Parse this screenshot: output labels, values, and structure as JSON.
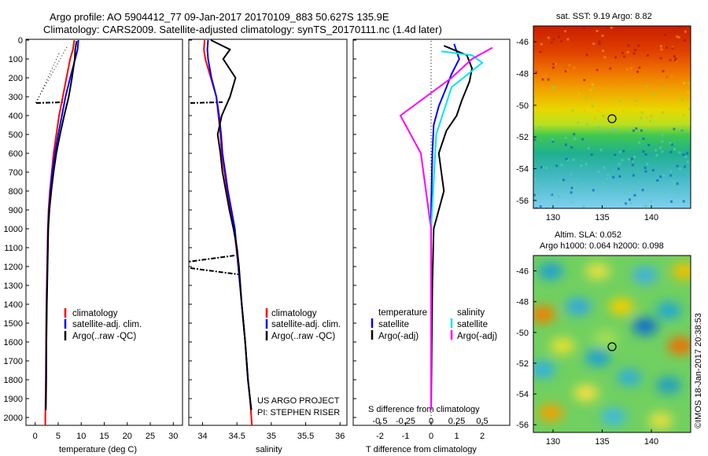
{
  "header": {
    "line1": "Argo profile: AO 5904412_77 09-Jan-2017 20170109_883 50.627S 135.9E",
    "line2": "Climatology: CARS2009. Satellite-adjusted climatology: synTS_20170111.nc (1.4d later)"
  },
  "colors": {
    "climatology": "#ff0000",
    "satellite": "#0000ff",
    "argo": "#000000",
    "salinity_satellite": "#00e5ee",
    "salinity_argo": "#ff00ff"
  },
  "depth_ticks": [
    "0",
    "100",
    "200",
    "300",
    "400",
    "500",
    "600",
    "700",
    "800",
    "900",
    "1000",
    "1100",
    "1200",
    "1300",
    "1400",
    "1500",
    "1600",
    "1700",
    "1800",
    "1900",
    "2000"
  ],
  "panel_temp": {
    "xlabel": "temperature (deg C)",
    "xticks": [
      "0",
      "5",
      "10",
      "15",
      "20",
      "25",
      "30"
    ],
    "legend": [
      "climatology",
      "satellite-adj. clim.",
      "Argo(..raw -QC)"
    ]
  },
  "panel_sal": {
    "xlabel": "salinity",
    "xticks": [
      "34",
      "34.5",
      "35",
      "35.5",
      "36"
    ],
    "legend": [
      "climatology",
      "satellite-adj. clim.",
      "Argo(..raw -QC)"
    ],
    "credit1": "US ARGO PROJECT",
    "credit2": "PI: STEPHEN RISER"
  },
  "panel_diff": {
    "xlabel": "T difference from climatology",
    "top_label": "S difference from climatology",
    "s_ticks": [
      "-0.5",
      "-0.25",
      "0",
      "0.25",
      "0.5"
    ],
    "t_ticks": [
      "-2",
      "-1",
      "0",
      "1",
      "2"
    ],
    "legend_t_title": "temperature",
    "legend_t_items": [
      "satellite",
      "Argo(-adj)"
    ],
    "legend_s_title": "salinity",
    "legend_s_items": [
      "satellite",
      "Argo(-adj)"
    ]
  },
  "map_sst": {
    "title": "sat. SST: 9.19 Argo: 8.82",
    "yticks": [
      "-46",
      "-48",
      "-50",
      "-52",
      "-54",
      "-56"
    ],
    "xticks": [
      "130",
      "135",
      "140"
    ]
  },
  "map_sla": {
    "title1": "Altim. SLA: 0.052",
    "title2": "Argo h1000: 0.064 h2000: 0.098",
    "yticks": [
      "-46",
      "-48",
      "-50",
      "-52",
      "-54",
      "-56"
    ],
    "xticks": [
      "130",
      "135",
      "140"
    ]
  },
  "stamp": "©IMOS 18-Jan-2017 20:38:53",
  "chart_data": [
    {
      "type": "line",
      "xlabel": "temperature (deg C)",
      "ylabel": "",
      "xlim": [
        -2,
        32
      ],
      "ylim": [
        2060,
        0
      ],
      "series": [
        {
          "name": "climatology",
          "x": [
            8.5,
            8.2,
            7.6,
            6.8,
            6.0,
            5.2,
            4.6,
            4.0,
            3.6,
            3.2,
            2.9,
            2.75,
            2.6,
            2.45,
            2.35,
            2.3,
            2.25,
            2.2,
            2.2
          ],
          "y": [
            0,
            50,
            100,
            200,
            300,
            400,
            500,
            600,
            700,
            800,
            900,
            1000,
            1200,
            1400,
            1600,
            1800,
            1900,
            2000,
            2050
          ]
        },
        {
          "name": "satellite-adj. clim.",
          "x": [
            9.4,
            9.2,
            8.7,
            7.6,
            6.6,
            5.8,
            5.0,
            4.3,
            3.7,
            3.3,
            3.0,
            2.8,
            2.65,
            2.5,
            2.4,
            2.35,
            2.3,
            2.3
          ],
          "y": [
            0,
            50,
            100,
            200,
            300,
            400,
            500,
            600,
            700,
            800,
            900,
            1000,
            1200,
            1400,
            1600,
            1800,
            1900,
            1960
          ]
        },
        {
          "name": "Argo(..raw -QC)",
          "x": [
            9.0,
            8.7,
            8.6,
            8.0,
            7.3,
            6.3,
            5.4,
            4.6,
            4.0,
            3.5,
            3.1,
            2.85,
            2.7,
            2.55,
            2.45,
            2.4,
            2.35,
            2.3
          ],
          "y": [
            5,
            50,
            100,
            200,
            300,
            400,
            500,
            600,
            700,
            800,
            900,
            1000,
            1200,
            1400,
            1600,
            1800,
            1900,
            1960
          ]
        }
      ]
    },
    {
      "type": "line",
      "xlabel": "salinity",
      "ylabel": "",
      "xlim": [
        33.8,
        36.1
      ],
      "ylim": [
        2060,
        0
      ],
      "series": [
        {
          "name": "climatology",
          "x": [
            34.03,
            34.02,
            34.04,
            34.12,
            34.2,
            34.23,
            34.26,
            34.28,
            34.32,
            34.36,
            34.41,
            34.46,
            34.52,
            34.57,
            34.62,
            34.66,
            34.69,
            34.71,
            34.72
          ],
          "y": [
            0,
            50,
            100,
            200,
            300,
            400,
            500,
            600,
            700,
            800,
            900,
            1000,
            1200,
            1400,
            1600,
            1800,
            1900,
            2000,
            2050
          ]
        },
        {
          "name": "satellite-adj. clim.",
          "x": [
            34.08,
            34.07,
            34.08,
            34.13,
            34.2,
            34.24,
            34.27,
            34.29,
            34.33,
            34.37,
            34.42,
            34.47,
            34.52,
            34.57,
            34.62,
            34.66,
            34.69,
            34.71
          ],
          "y": [
            0,
            50,
            100,
            200,
            300,
            400,
            500,
            600,
            700,
            800,
            900,
            1000,
            1200,
            1400,
            1600,
            1800,
            1900,
            1960
          ]
        },
        {
          "name": "Argo(..raw -QC)",
          "x": [
            34.12,
            34.4,
            34.3,
            34.48,
            34.4,
            34.28,
            34.22,
            34.26,
            34.29,
            34.34,
            34.39,
            34.45,
            34.5,
            34.53,
            34.57,
            34.62,
            34.66,
            34.69,
            34.71
          ],
          "y": [
            0,
            50,
            100,
            200,
            300,
            400,
            500,
            600,
            700,
            800,
            900,
            1000,
            1100,
            1200,
            1400,
            1600,
            1800,
            1900,
            1960
          ]
        }
      ]
    },
    {
      "type": "line",
      "xlabel": "T difference from climatology",
      "ylabel": "",
      "xlim": [
        -2.6,
        2.6
      ],
      "ylim": [
        2060,
        0
      ],
      "series": [
        {
          "name": "temperature satellite",
          "x": [
            0.9,
            1.0,
            1.1,
            0.8,
            0.6,
            0.3,
            0.1,
            0.05,
            0.0,
            0.0,
            0.0
          ],
          "y": [
            20,
            60,
            100,
            180,
            250,
            350,
            450,
            600,
            900,
            1400,
            1960
          ]
        },
        {
          "name": "temperature Argo(-adj)",
          "x": [
            0.5,
            1.4,
            1.6,
            1.5,
            1.2,
            1.0,
            0.6,
            0.3,
            0.5,
            0.1,
            0.05,
            0.0
          ],
          "y": [
            30,
            80,
            150,
            220,
            320,
            400,
            480,
            600,
            800,
            1000,
            1300,
            1960
          ]
        },
        {
          "name": "salinity satellite",
          "x": [
            0.1,
            0.4,
            0.5,
            0.2,
            0.05,
            0.0,
            0.0
          ],
          "y": [
            60,
            80,
            120,
            250,
            500,
            1000,
            1960
          ]
        },
        {
          "name": "salinity Argo(-adj)",
          "x": [
            0.6,
            0.4,
            0.2,
            -0.3,
            -0.1,
            0.0,
            0.0
          ],
          "y": [
            40,
            100,
            200,
            400,
            600,
            1000,
            1960
          ]
        }
      ]
    },
    {
      "type": "heatmap",
      "title": "sat. SST: 9.19 Argo: 8.82",
      "xlim": [
        128,
        144
      ],
      "ylim": [
        -56.5,
        -45
      ],
      "marker": {
        "lon": 135.9,
        "lat": -50.627
      }
    },
    {
      "type": "heatmap",
      "title": "Altim. SLA: 0.052",
      "xlim": [
        128,
        144
      ],
      "ylim": [
        -56.5,
        -45
      ],
      "marker": {
        "lon": 135.9,
        "lat": -50.627
      }
    }
  ]
}
